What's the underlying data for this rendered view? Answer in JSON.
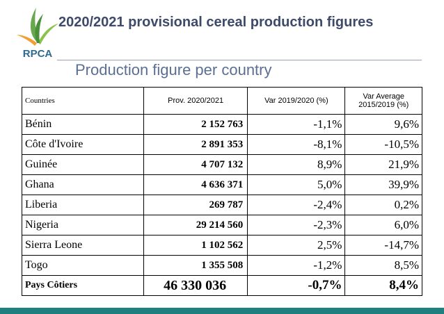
{
  "logo": {
    "text": "RPCA"
  },
  "header": {
    "title": "2020/2021 provisional cereal production figures",
    "subtitle": "Production figure per country"
  },
  "table": {
    "columns": [
      "Countries",
      "Prov. 2020/2021",
      "Var 2019/2020 (%)",
      "Var Average 2015/2019 (%)"
    ],
    "rows": [
      [
        "Bénin",
        "2 152 763",
        "-1,1%",
        "9,6%"
      ],
      [
        "Côte d'Ivoire",
        "2 891 353",
        "-8,1%",
        "-10,5%"
      ],
      [
        "Guinée",
        "4 707 132",
        "8,9%",
        "21,9%"
      ],
      [
        "Ghana",
        "4 636 371",
        "5,0%",
        "39,9%"
      ],
      [
        "Liberia",
        "269 787",
        "-2,4%",
        "0,2%"
      ],
      [
        "Nigeria",
        "29 214 560",
        "-2,3%",
        "6,0%"
      ],
      [
        "Sierra Leone",
        "1 102 562",
        "2,5%",
        "-14,7%"
      ],
      [
        "Togo",
        "1 355 508",
        "-1,2%",
        "8,5%"
      ]
    ],
    "total": [
      "Pays Côtiers",
      "46 330 036",
      "-0,7%",
      "8,4%"
    ]
  }
}
